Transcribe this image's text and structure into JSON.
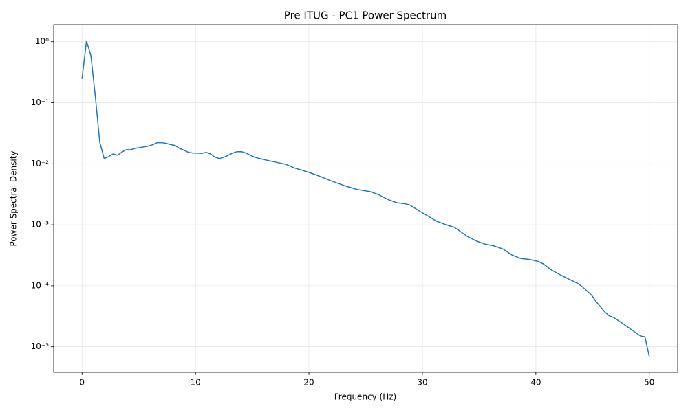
{
  "chart_data": {
    "type": "line",
    "title": "Pre ITUG - PC1 Power Spectrum",
    "x_label": "Frequency (Hz)",
    "y_label": "Power Spectral Density",
    "log_y": true,
    "grid": true,
    "xlim": [
      -2.5,
      52.5
    ],
    "xticks": [
      0,
      10,
      20,
      30,
      40,
      50
    ],
    "ylim": [
      3.8e-06,
      1.9
    ],
    "yticks": [
      {
        "value": 1e-05,
        "label": "10⁻⁵"
      },
      {
        "value": 0.0001,
        "label": "10⁻⁴"
      },
      {
        "value": 0.001,
        "label": "10⁻³"
      },
      {
        "value": 0.01,
        "label": "10⁻²"
      },
      {
        "value": 0.1,
        "label": "10⁻¹"
      },
      {
        "value": 1,
        "label": "10⁰"
      }
    ],
    "series": [
      {
        "color": "#1f77b4",
        "x": [
          0,
          0.39,
          0.78,
          1.17,
          1.56,
          1.95,
          2.34,
          2.73,
          3.13,
          3.52,
          3.91,
          4.3,
          4.69,
          5.08,
          5.47,
          5.86,
          6.25,
          6.64,
          7.03,
          7.42,
          7.81,
          8.2,
          8.59,
          8.98,
          9.38,
          9.77,
          10.16,
          10.55,
          10.94,
          11.33,
          11.72,
          12.11,
          12.5,
          12.89,
          13.28,
          13.67,
          14.06,
          14.45,
          14.84,
          15.23,
          15.63,
          16.41,
          17.19,
          17.97,
          18.75,
          19.53,
          20.31,
          21.09,
          21.88,
          22.66,
          23.44,
          24.22,
          25.0,
          25.39,
          26.17,
          26.95,
          27.73,
          28.52,
          28.91,
          29.69,
          30.47,
          31.25,
          32.03,
          32.81,
          33.2,
          33.98,
          34.77,
          35.55,
          36.33,
          37.11,
          37.89,
          38.67,
          39.45,
          40.23,
          40.63,
          41.41,
          42.19,
          42.97,
          43.75,
          44.14,
          44.92,
          45.31,
          46.09,
          46.48,
          46.88,
          47.66,
          48.44,
          49.22,
          49.61,
          50.0
        ],
        "values": [
          0.247,
          1.03,
          0.595,
          0.129,
          0.0227,
          0.0122,
          0.0131,
          0.0145,
          0.0138,
          0.0156,
          0.017,
          0.017,
          0.0179,
          0.0184,
          0.0189,
          0.0195,
          0.0206,
          0.0222,
          0.0222,
          0.0216,
          0.0206,
          0.02,
          0.0179,
          0.0167,
          0.0154,
          0.015,
          0.015,
          0.0148,
          0.0154,
          0.0145,
          0.0128,
          0.0122,
          0.0128,
          0.0138,
          0.015,
          0.0158,
          0.0158,
          0.015,
          0.0138,
          0.0128,
          0.0122,
          0.0113,
          0.0105,
          0.0098,
          0.0085,
          0.0077,
          0.0069,
          0.0061,
          0.0053,
          0.0047,
          0.0042,
          0.0038,
          0.0036,
          0.0035,
          0.0031,
          0.0026,
          0.0023,
          0.0022,
          0.0021,
          0.0017,
          0.0014,
          0.00114,
          0.00101,
          0.00091,
          0.00081,
          0.00064,
          0.00054,
          0.00048,
          0.00045,
          0.0004,
          0.00032,
          0.00028,
          0.00027,
          0.00025,
          0.00023,
          0.00018,
          0.00015,
          0.000127,
          0.000108,
          9.5e-05,
          7e-05,
          5.5e-05,
          3.7e-05,
          3.2e-05,
          3e-05,
          2.4e-05,
          1.9e-05,
          1.5e-05,
          1.46e-05,
          6.9e-06
        ]
      }
    ]
  }
}
